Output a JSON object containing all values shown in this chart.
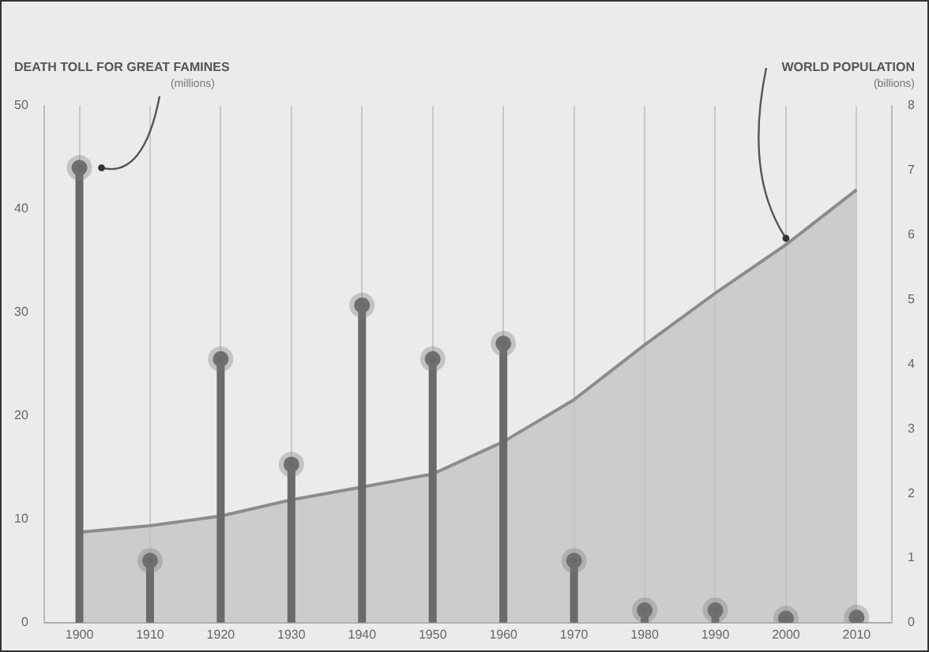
{
  "chart_data": {
    "type": "lollipop",
    "ylabel": "DEATH TOLL FOR GREAT FAMINES",
    "y2label": "WORLD POPULATION",
    "annotations": [
      "(millions)",
      "(billions)"
    ],
    "categories": [
      "1900",
      "1910",
      "1920",
      "1930",
      "1940",
      "1950",
      "1960",
      "1970",
      "1980",
      "1990",
      "2000",
      "2010"
    ],
    "series": [
      {
        "color": "#6a6a6a",
        "marker": "circle",
        "values": [
          44,
          6,
          25.5,
          15.3,
          30.7,
          25.5,
          27,
          6,
          1.2,
          1.2,
          0.4,
          0.5
        ]
      },
      {
        "type": "area",
        "axis": "y2",
        "color": "#c4c4c4",
        "values": [
          1.4,
          1.5,
          1.65,
          1.9,
          2.1,
          2.3,
          2.8,
          3.45,
          4.3,
          5.1,
          5.85,
          6.7
        ]
      }
    ],
    "ylim": [
      0,
      50
    ],
    "yticks": [
      0,
      10,
      20,
      30,
      40,
      50
    ],
    "y2lim": [
      0,
      8
    ],
    "y2ticks": [
      0,
      1,
      2,
      3,
      4,
      5,
      6,
      7,
      8
    ],
    "grid": "x",
    "legend": false
  }
}
